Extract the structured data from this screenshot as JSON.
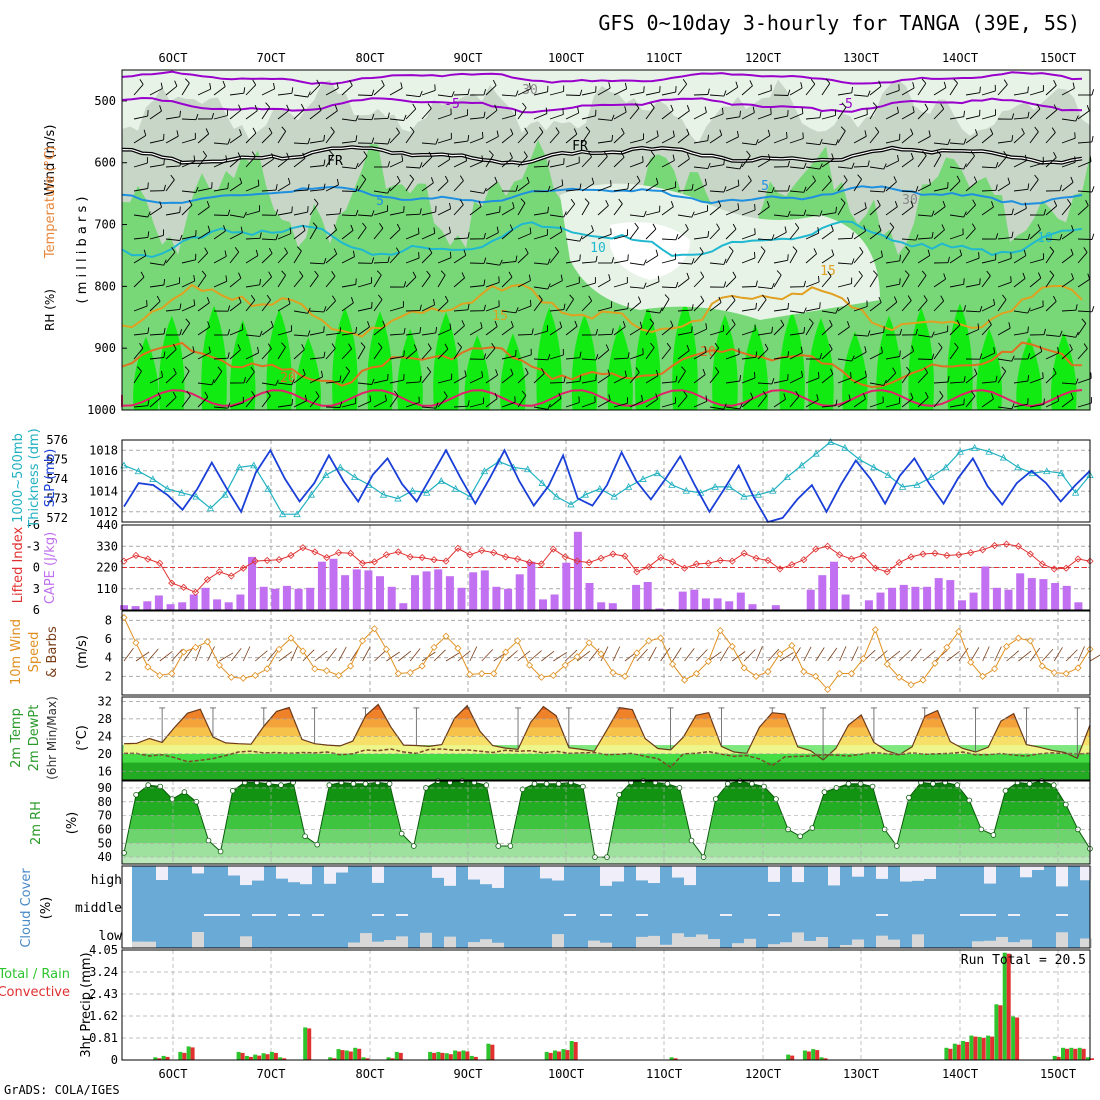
{
  "title": "GFS 0~10day 3-hourly for TANGA (39E, 5S)",
  "footer": "GrADS: COLA/IGES",
  "colors": {
    "rh_light": "#e8f3e8",
    "rh_mid": "#c8d6c8",
    "rh_green": "#6fd86f",
    "rh_bright": "#00ee00",
    "temp_purple": "#9900cc",
    "temp_fr": "#000000",
    "temp_5": "#1e90e0",
    "temp_10": "#20b8d0",
    "temp_15": "#e0a020",
    "temp_20": "#e07020",
    "temp_25": "#e0206a",
    "slp": "#1a3fd8",
    "thickness": "#20b0c0",
    "cape": "#c070f0",
    "li": "#e03030",
    "wind_speed": "#e09020",
    "barb": "#7a3e1a",
    "cloud": "#6aaad6",
    "cloud_gap": "#f0eef8",
    "low_cloud": "#d8d8d8",
    "precip_total": "#2ec42e",
    "precip_conv": "#e03030"
  },
  "time_axis": {
    "labels": [
      "6OCT",
      "7OCT",
      "8OCT",
      "9OCT",
      "10OCT",
      "11OCT",
      "12OCT",
      "13OCT",
      "14OCT",
      "15OCT"
    ]
  },
  "panels": {
    "upper": {
      "left_labels": {
        "wind": "Wind (m/s)",
        "temperature": "Temperature (°C)",
        "rh": "RH (%)",
        "units": "( m i l l i b a r s )"
      },
      "yticks": [
        "500",
        "600",
        "700",
        "800",
        "900",
        "1000"
      ],
      "contour_labels": [
        "-5",
        "-5",
        "FR",
        "FR",
        "5",
        "5",
        "10",
        "10",
        "15",
        "15",
        "20",
        "20",
        "30",
        "30"
      ]
    },
    "slp": {
      "left_labels": {
        "thickness": "Thickness (dm)",
        "sub": "1000~500mb",
        "slp": "SLP (mb)"
      },
      "yticks_left": [
        "576",
        "575",
        "574",
        "573",
        "572"
      ],
      "yticks_right": [
        "1018",
        "1016",
        "1014",
        "1012"
      ]
    },
    "cape": {
      "left_labels": {
        "li": "Lifted Index",
        "cape": "CAPE (J/kg)"
      },
      "yticks_left": [
        "-6",
        "-3",
        "0",
        "3",
        "6"
      ],
      "yticks_right": [
        "440",
        "330",
        "220",
        "110"
      ]
    },
    "wind10m": {
      "left_labels": {
        "a": "10m Wind",
        "b": "Speed",
        "c": "& Barbs",
        "units": "(m/s)"
      },
      "yticks": [
        "8",
        "6",
        "4",
        "2"
      ]
    },
    "temp": {
      "left_labels": {
        "a": "2m Temp",
        "b": "2m DewPt",
        "c": "(6hr Min/Max)",
        "units": "(°C)"
      },
      "yticks": [
        "32",
        "28",
        "24",
        "20",
        "16"
      ]
    },
    "rh": {
      "left_labels": {
        "a": "2m RH",
        "units": "(%)"
      },
      "yticks": [
        "90",
        "80",
        "70",
        "60",
        "50",
        "40"
      ]
    },
    "cloud": {
      "left_labels": {
        "a": "Cloud Cover",
        "units": "(%)"
      },
      "levels": [
        "high",
        "middle",
        "low"
      ]
    },
    "precip": {
      "left_labels": {
        "a": "Total / Rain",
        "b": "Convective",
        "c": "3hr Precip (mm)"
      },
      "yticks": [
        "4.05",
        "3.24",
        "2.43",
        "1.62",
        "0.81",
        "0"
      ],
      "run_total": "Run Total = 20.5"
    }
  },
  "chart_data": [
    {
      "type": "line",
      "title": "SLP and 1000~500mb Thickness",
      "x_start": "6OCT 00Z",
      "x_step_hours": 3,
      "series": [
        {
          "name": "SLP (mb)",
          "values": [
            1012.5,
            1014.8,
            1014.6,
            1013.6,
            1012.2,
            1014.2,
            1016.8,
            1014.3,
            1012.0,
            1015.8,
            1018.0,
            1015.2,
            1013.0,
            1014.8,
            1017.5,
            1015.0,
            1013.0,
            1015.6,
            1017.2,
            1014.7,
            1013.0,
            1015.5,
            1018.0,
            1015.3,
            1012.8,
            1015.3,
            1018.0,
            1015.0,
            1012.6,
            1014.5,
            1017.5,
            1013.3,
            1012.6,
            1014.6,
            1017.8,
            1015.0,
            1013.2,
            1015.2,
            1017.4,
            1014.6,
            1012.0,
            1014.2,
            1016.5,
            1013.5,
            1011.0,
            1011.4,
            1013.2,
            1014.6,
            1012.0,
            1014.7,
            1017.0,
            1015.2,
            1012.8,
            1015.5,
            1017.2,
            1014.8,
            1012.8,
            1015.3,
            1017.2,
            1014.5,
            1012.7,
            1014.8,
            1016.0,
            1014.8,
            1013.0,
            1014.6,
            1016.0
          ]
        },
        {
          "name": "Thickness (dm)",
          "values": [
            574.7,
            574.4,
            574.0,
            573.5,
            573.3,
            573.1,
            572.5,
            573.2,
            574.6,
            574.7,
            573.5,
            572.2,
            572.2,
            573.2,
            574.2,
            574.6,
            574.1,
            573.7,
            573.2,
            573.0,
            573.4,
            573.3,
            573.9,
            573.5,
            573.1,
            574.4,
            574.9,
            574.6,
            574.5,
            573.8,
            573.1,
            572.7,
            573.2,
            573.5,
            573.1,
            573.6,
            574.0,
            574.3,
            573.7,
            573.4,
            573.3,
            573.6,
            573.6,
            573.1,
            573.2,
            573.4,
            574.1,
            574.7,
            575.3,
            575.9,
            575.6,
            575.0,
            574.6,
            574.2,
            573.6,
            573.7,
            574.1,
            574.6,
            575.4,
            575.6,
            575.4,
            575.1,
            574.6,
            574.3,
            574.4,
            574.3,
            573.3,
            574.2
          ]
        }
      ],
      "ylim_slp": [
        1011,
        1019
      ],
      "ylim_thickness": [
        571.8,
        576
      ]
    },
    {
      "type": "bar",
      "title": "CAPE and Lifted Index",
      "x_start": "6OCT 00Z",
      "x_step_hours": 3,
      "series": [
        {
          "name": "CAPE (J/kg)",
          "values": [
            25,
            20,
            45,
            75,
            30,
            40,
            80,
            115,
            55,
            40,
            80,
            275,
            120,
            110,
            125,
            110,
            115,
            250,
            265,
            180,
            210,
            205,
            175,
            120,
            35,
            180,
            200,
            210,
            175,
            115,
            195,
            205,
            120,
            110,
            185,
            250,
            55,
            80,
            245,
            405,
            140,
            40,
            35,
            0,
            130,
            145,
            8,
            5,
            95,
            105,
            60,
            60,
            45,
            90,
            30,
            0,
            25,
            0,
            0,
            105,
            180,
            250,
            80,
            0,
            50,
            90,
            115,
            130,
            120,
            120,
            165,
            155,
            50,
            90,
            225,
            115,
            105,
            190,
            165,
            160,
            140,
            125,
            40,
            0
          ]
        },
        {
          "name": "Lifted Index",
          "values": [
            -0.9,
            -1.7,
            -1.2,
            -0.6,
            2.2,
            2.8,
            3.5,
            1.7,
            0.6,
            1.2,
            0.1,
            -0.9,
            -1.0,
            -1.1,
            -1.7,
            -2.8,
            -2.2,
            -1.4,
            -2.1,
            -2.0,
            -0.6,
            -0.8,
            -1.8,
            -2.2,
            -1.5,
            -1.4,
            -1.1,
            -0.9,
            -2.7,
            -1.8,
            -2.4,
            -2.1,
            -1.5,
            -1.2,
            -0.7,
            -0.5,
            -2.6,
            -1.5,
            -0.9,
            -0.7,
            -1.3,
            -1.9,
            -1.6,
            0.6,
            -0.1,
            -1.4,
            -0.8,
            0.1,
            -0.5,
            -0.6,
            -1.0,
            -0.9,
            -2.0,
            -1.3,
            -1.0,
            0.2,
            -0.4,
            -1.1,
            -2.6,
            -3.0,
            -1.8,
            -1.2,
            -1.7,
            0.1,
            0.6,
            -0.7,
            -1.5,
            -1.9,
            -2.0,
            -1.7,
            -1.8,
            -2.1,
            -2.5,
            -3.1,
            -3.3,
            -3.0,
            -1.9,
            -0.5,
            0.2,
            0.1,
            -1.2,
            -0.9
          ]
        }
      ],
      "ylim_cape": [
        0,
        440
      ],
      "ylim_li": [
        6,
        -6
      ]
    },
    {
      "type": "line",
      "title": "10m Wind Speed",
      "x_start": "6OCT 00Z",
      "x_step_hours": 3,
      "series": [
        {
          "name": "Wind Speed (m/s)",
          "values": [
            8.3,
            5.6,
            3.0,
            2.1,
            2.3,
            4.6,
            5.1,
            5.7,
            3.2,
            1.9,
            1.8,
            2.1,
            2.8,
            4.9,
            6.1,
            4.7,
            2.8,
            2.6,
            2.1,
            3.1,
            5.8,
            7.1,
            4.9,
            2.3,
            2.4,
            3.1,
            5.1,
            6.3,
            5.0,
            2.2,
            2.3,
            2.3,
            4.6,
            5.8,
            3.2,
            1.9,
            2.1,
            3.2,
            4.1,
            5.6,
            4.4,
            2.4,
            2.0,
            4.5,
            5.8,
            6.1,
            3.3,
            1.6,
            2.3,
            3.6,
            6.9,
            5.2,
            2.9,
            2.0,
            2.5,
            4.4,
            5.3,
            2.5,
            2.0,
            0.6,
            2.3,
            2.3,
            3.9,
            7.0,
            3.3,
            1.9,
            1.1,
            1.6,
            3.4,
            5.1,
            6.8,
            3.5,
            2.0,
            2.8,
            5.2,
            6.1,
            5.8,
            3.1,
            2.4,
            2.3,
            2.9,
            4.9
          ]
        }
      ],
      "ylim": [
        0,
        9
      ]
    },
    {
      "type": "area",
      "title": "2m Temperature and Dew Point",
      "x_start": "6OCT 00Z",
      "x_step_hours": 3,
      "series": [
        {
          "name": "2m Temp (°C)",
          "values": [
            22.3,
            22.4,
            23.5,
            22.6,
            26.1,
            29.3,
            30.2,
            23.8,
            22.5,
            22.3,
            22.2,
            26.3,
            29.7,
            30.6,
            23.3,
            22.3,
            22.0,
            21.8,
            22.9,
            28.7,
            31.3,
            26.1,
            22.0,
            21.9,
            21.7,
            22.1,
            28.1,
            31.0,
            25.2,
            21.9,
            21.3,
            21.0,
            27.2,
            30.8,
            28.7,
            21.4,
            21.0,
            20.6,
            25.5,
            30.6,
            30.1,
            23.5,
            21.2,
            20.9,
            23.8,
            28.8,
            29.4,
            21.7,
            20.4,
            20.1,
            26.1,
            29.4,
            29.1,
            21.6,
            20.7,
            18.6,
            21.2,
            26.6,
            28.9,
            22.6,
            20.7,
            19.8,
            21.6,
            28.6,
            29.9,
            22.8,
            21.2,
            20.4,
            21.5,
            27.5,
            29.2,
            22.1,
            21.5,
            20.8,
            20.3,
            19.0,
            26.6
          ]
        },
        {
          "name": "2m DewPt (°C)",
          "values": [
            20.1,
            20.1,
            19.5,
            19.8,
            19.1,
            18.2,
            18.5,
            18.9,
            19.6,
            20.4,
            20.6,
            20.2,
            20.3,
            20.1,
            20.3,
            20.2,
            20.4,
            19.8,
            20.0,
            20.9,
            20.7,
            21.1,
            20.4,
            20.1,
            21.0,
            21.1,
            20.8,
            20.9,
            20.6,
            20.3,
            20.8,
            20.6,
            20.7,
            20.2,
            20.6,
            20.1,
            20.2,
            20.3,
            19.8,
            19.9,
            20.1,
            19.4,
            18.9,
            16.9,
            20.0,
            20.1,
            20.5,
            19.9,
            19.4,
            19.6,
            18.8,
            17.3,
            19.3,
            19.4,
            19.5,
            19.8,
            19.7,
            19.5,
            19.9,
            20.3,
            20.0,
            19.8,
            20.2,
            19.9,
            20.0,
            20.1,
            20.4,
            19.8,
            19.8,
            20.1,
            19.7,
            19.5,
            20.0,
            20.2,
            20.1,
            20.0,
            20.1
          ]
        }
      ],
      "ylim": [
        14,
        33
      ]
    },
    {
      "type": "area",
      "title": "2m Relative Humidity",
      "x_start": "6OCT 00Z",
      "x_step_hours": 3,
      "series": [
        {
          "name": "2m RH (%)",
          "values": [
            43,
            85,
            92,
            91,
            82,
            87,
            80,
            52,
            44,
            88,
            94,
            94,
            93,
            92,
            94,
            55,
            49,
            92,
            94,
            93,
            93,
            94,
            93,
            57,
            48,
            90,
            95,
            94,
            95,
            94,
            92,
            48,
            48,
            89,
            93,
            93,
            93,
            94,
            91,
            40,
            40,
            85,
            94,
            95,
            94,
            93,
            90,
            52,
            40,
            82,
            93,
            95,
            93,
            91,
            82,
            60,
            55,
            61,
            87,
            90,
            93,
            93,
            91,
            60,
            48,
            83,
            94,
            93,
            94,
            92,
            81,
            60,
            56,
            88,
            94,
            93,
            95,
            92,
            78,
            60,
            46
          ]
        }
      ],
      "ylim": [
        35,
        95
      ]
    },
    {
      "type": "bar",
      "title": "3hr Precipitation",
      "x_start": "6OCT 00Z",
      "x_step_hours": 3,
      "series": [
        {
          "name": "Total (mm)",
          "values": [
            0,
            0,
            0,
            0,
            0.1,
            0.15,
            0,
            0.3,
            0.5,
            0,
            0,
            0,
            0,
            0,
            0.3,
            0.15,
            0.2,
            0.25,
            0.3,
            0.1,
            0,
            0,
            1.2,
            0,
            0,
            0.1,
            0.4,
            0.35,
            0.45,
            0.1,
            0,
            0,
            0.1,
            0.3,
            0,
            0,
            0,
            0.3,
            0.3,
            0.25,
            0.35,
            0.35,
            0.15,
            0,
            0.6,
            0,
            0,
            0,
            0,
            0,
            0,
            0.3,
            0.35,
            0.4,
            0.7,
            0,
            0,
            0,
            0,
            0,
            0,
            0,
            0,
            0,
            0,
            0,
            0.1,
            0,
            0,
            0,
            0,
            0,
            0,
            0,
            0,
            0,
            0,
            0,
            0,
            0,
            0.2,
            0,
            0.35,
            0.4,
            0.1,
            0,
            0,
            0,
            0,
            0,
            0,
            0,
            0,
            0,
            0,
            0,
            0,
            0,
            0,
            0.45,
            0.6,
            0.7,
            0.9,
            0.85,
            0.9,
            2.05,
            3.95,
            1.6,
            0,
            0,
            0,
            0,
            0.15,
            0.45,
            0.45,
            0.45,
            0.1
          ]
        }
      ],
      "ylim": [
        0,
        4.05
      ]
    }
  ]
}
